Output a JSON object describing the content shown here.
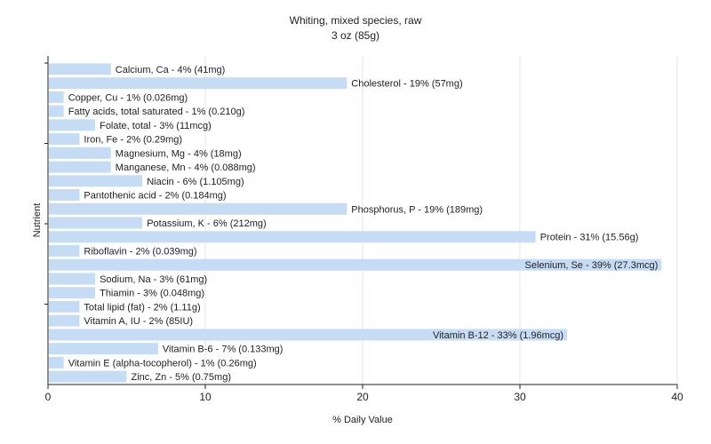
{
  "chart_data": {
    "type": "bar",
    "orientation": "horizontal",
    "title": "Whiting, mixed species, raw",
    "subtitle": "3 oz (85g)",
    "xlabel": "% Daily Value",
    "ylabel": "Nutrient",
    "xlim": [
      0,
      40
    ],
    "x_ticks": [
      0,
      10,
      20,
      30,
      40
    ],
    "grid": true,
    "bar_color": "#c6dcf5",
    "categories": [
      "Calcium, Ca",
      "Cholesterol",
      "Copper, Cu",
      "Fatty acids, total saturated",
      "Folate, total",
      "Iron, Fe",
      "Magnesium, Mg",
      "Manganese, Mn",
      "Niacin",
      "Pantothenic acid",
      "Phosphorus, P",
      "Potassium, K",
      "Protein",
      "Riboflavin",
      "Selenium, Se",
      "Sodium, Na",
      "Thiamin",
      "Total lipid (fat)",
      "Vitamin A, IU",
      "Vitamin B-12",
      "Vitamin B-6",
      "Vitamin E (alpha-tocopherol)",
      "Zinc, Zn"
    ],
    "values": [
      4,
      19,
      1,
      1,
      3,
      2,
      4,
      4,
      6,
      2,
      19,
      6,
      31,
      2,
      39,
      3,
      3,
      2,
      2,
      33,
      7,
      1,
      5
    ],
    "data_labels": [
      "Calcium, Ca - 4% (41mg)",
      "Cholesterol - 19% (57mg)",
      "Copper, Cu - 1% (0.026mg)",
      "Fatty acids, total saturated - 1% (0.210g)",
      "Folate, total - 3% (11mcg)",
      "Iron, Fe - 2% (0.29mg)",
      "Magnesium, Mg - 4% (18mg)",
      "Manganese, Mn - 4% (0.088mg)",
      "Niacin - 6% (1.105mg)",
      "Pantothenic acid - 2% (0.184mg)",
      "Phosphorus, P - 19% (189mg)",
      "Potassium, K - 6% (212mg)",
      "Protein - 31% (15.56g)",
      "Riboflavin - 2% (0.039mg)",
      "Selenium, Se - 39% (27.3mcg)",
      "Sodium, Na - 3% (61mg)",
      "Thiamin - 3% (0.048mg)",
      "Total lipid (fat) - 2% (1.11g)",
      "Vitamin A, IU - 2% (85IU)",
      "Vitamin B-12 - 33% (1.96mcg)",
      "Vitamin B-6 - 7% (0.133mg)",
      "Vitamin E (alpha-tocopherol) - 1% (0.26mg)",
      "Zinc, Zn - 5% (0.75mg)"
    ]
  }
}
